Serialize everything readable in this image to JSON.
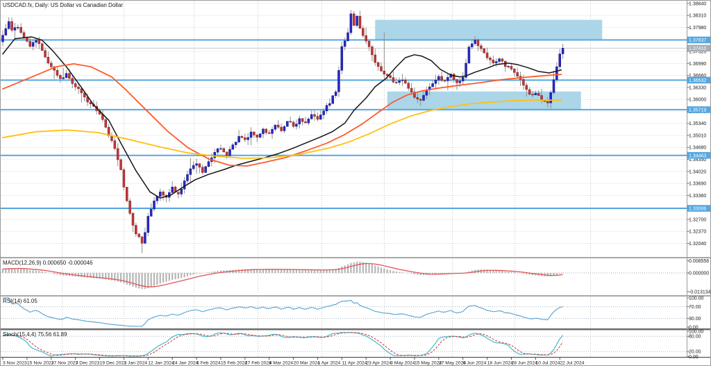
{
  "window": {
    "title": "USDCAD.fx, Daily:  US Dollar vs Canadian Dollar"
  },
  "colors": {
    "background": "#FFFFFF",
    "bull_candle": "#2828C8",
    "bull_border": "#15157F",
    "bear_candle": "#C23838",
    "bear_border": "#7E1F1F",
    "wick": "#8F8F8F",
    "sr_line": "#56A7E0",
    "sr_label_bg": "#56A7E0",
    "bid_line": "#C9C9C9",
    "bid_label_bg": "#A6AEB6",
    "zone_rect": "#ABD6E8",
    "ma_fast": "#141414",
    "ma_mid": "#FF5A2B",
    "ma_slow": "#FFC011",
    "macd_hist": "#B5B5B5",
    "macd_signal": "#E05555",
    "rsi_line": "#5FA8D8",
    "stoch_main": "#46B8CC",
    "stoch_signal": "#CC4444",
    "grid_h": "#EFEFEF",
    "grid_v": "#C4C4C4",
    "level_dotted": "#A8B6C4",
    "axis_text": "#1C1C1C",
    "separator": "#8C8C8C"
  },
  "price_axis": {
    "tick_top": 1.3864,
    "tick_step": 0.0033,
    "tick_count": 21,
    "highlighted_levels": [
      1.37637,
      1.36532,
      1.35719,
      1.34463,
      1.33006
    ],
    "bid_price": 1.3741,
    "bid_label": "1.37410"
  },
  "time_axis": {
    "labels": [
      {
        "text": "3 Nov 2023",
        "bar": 0
      },
      {
        "text": "15 Nov 2023",
        "bar": 8
      },
      {
        "text": "27 Nov 2023",
        "bar": 16
      },
      {
        "text": "7 Dec 2023",
        "bar": 24
      },
      {
        "text": "19 Dec 2023",
        "bar": 32
      },
      {
        "text": "2 Jan 2024",
        "bar": 40
      },
      {
        "text": "12 Jan 2024",
        "bar": 48
      },
      {
        "text": "24 Jan 2024",
        "bar": 56
      },
      {
        "text": "5 Feb 2024",
        "bar": 64
      },
      {
        "text": "15 Feb 2024",
        "bar": 72
      },
      {
        "text": "27 Feb 2024",
        "bar": 80
      },
      {
        "text": "8 Mar 2024",
        "bar": 88
      },
      {
        "text": "20 Mar 2024",
        "bar": 96
      },
      {
        "text": "1 Apr 2024",
        "bar": 104
      },
      {
        "text": "11 Apr 2024",
        "bar": 112
      },
      {
        "text": "23 Apr 2024",
        "bar": 120
      },
      {
        "text": "3 May 2024",
        "bar": 128
      },
      {
        "text": "15 May 2024",
        "bar": 136
      },
      {
        "text": "27 May 2024",
        "bar": 144
      },
      {
        "text": "6 Jun 2024",
        "bar": 152
      },
      {
        "text": "18 Jun 2024",
        "bar": 160
      },
      {
        "text": "28 Jun 2024",
        "bar": 168
      },
      {
        "text": "10 Jul 2024",
        "bar": 176
      },
      {
        "text": "22 Jul 2024",
        "bar": 184
      }
    ],
    "month_grid_bars": [
      88,
      177,
      278,
      370,
      462,
      552,
      650,
      740,
      849
    ]
  },
  "chart_data": {
    "type": "candlestick",
    "symbol": "USDCAD",
    "timeframe": "Daily",
    "title": "US Dollar vs Canadian Dollar",
    "bars_total": 186,
    "last_close": 1.3741,
    "close_anchors": [
      [
        0,
        1.3775
      ],
      [
        2,
        1.3815
      ],
      [
        3,
        1.379
      ],
      [
        5,
        1.38
      ],
      [
        7,
        1.377
      ],
      [
        9,
        1.3745
      ],
      [
        11,
        1.3762
      ],
      [
        13,
        1.3735
      ],
      [
        15,
        1.37
      ],
      [
        17,
        1.368
      ],
      [
        19,
        1.3658
      ],
      [
        21,
        1.3672
      ],
      [
        23,
        1.3645
      ],
      [
        25,
        1.363
      ],
      [
        27,
        1.3608
      ],
      [
        29,
        1.3588
      ],
      [
        31,
        1.3568
      ],
      [
        33,
        1.3545
      ],
      [
        35,
        1.35
      ],
      [
        37,
        1.3465
      ],
      [
        39,
        1.3405
      ],
      [
        40,
        1.336
      ],
      [
        41,
        1.332
      ],
      [
        42,
        1.3285
      ],
      [
        43,
        1.3255
      ],
      [
        44,
        1.323
      ],
      [
        45,
        1.3222
      ],
      [
        46,
        1.3205
      ],
      [
        47,
        1.3235
      ],
      [
        48,
        1.328
      ],
      [
        50,
        1.332
      ],
      [
        52,
        1.3345
      ],
      [
        54,
        1.333
      ],
      [
        56,
        1.336
      ],
      [
        58,
        1.334
      ],
      [
        60,
        1.3375
      ],
      [
        62,
        1.341
      ],
      [
        64,
        1.3425
      ],
      [
        66,
        1.34
      ],
      [
        68,
        1.343
      ],
      [
        70,
        1.3455
      ],
      [
        72,
        1.3465
      ],
      [
        74,
        1.3445
      ],
      [
        76,
        1.3475
      ],
      [
        78,
        1.35
      ],
      [
        80,
        1.3488
      ],
      [
        82,
        1.3512
      ],
      [
        84,
        1.3495
      ],
      [
        86,
        1.352
      ],
      [
        88,
        1.3505
      ],
      [
        90,
        1.353
      ],
      [
        92,
        1.3515
      ],
      [
        94,
        1.354
      ],
      [
        96,
        1.3525
      ],
      [
        98,
        1.3548
      ],
      [
        100,
        1.3535
      ],
      [
        102,
        1.3558
      ],
      [
        104,
        1.3545
      ],
      [
        106,
        1.357
      ],
      [
        108,
        1.359
      ],
      [
        110,
        1.362
      ],
      [
        111,
        1.368
      ],
      [
        112,
        1.3745
      ],
      [
        113,
        1.376
      ],
      [
        114,
        1.3785
      ],
      [
        115,
        1.3835
      ],
      [
        116,
        1.3805
      ],
      [
        117,
        1.383
      ],
      [
        118,
        1.3795
      ],
      [
        120,
        1.376
      ],
      [
        122,
        1.3722
      ],
      [
        124,
        1.369
      ],
      [
        126,
        1.3668
      ],
      [
        128,
        1.366
      ],
      [
        130,
        1.3645
      ],
      [
        132,
        1.3655
      ],
      [
        134,
        1.363
      ],
      [
        136,
        1.3605
      ],
      [
        138,
        1.3598
      ],
      [
        140,
        1.3625
      ],
      [
        142,
        1.3645
      ],
      [
        144,
        1.3662
      ],
      [
        146,
        1.365
      ],
      [
        148,
        1.3668
      ],
      [
        150,
        1.3645
      ],
      [
        152,
        1.366
      ],
      [
        153,
        1.37
      ],
      [
        154,
        1.3745
      ],
      [
        156,
        1.3762
      ],
      [
        158,
        1.374
      ],
      [
        160,
        1.3715
      ],
      [
        162,
        1.37
      ],
      [
        164,
        1.3712
      ],
      [
        166,
        1.369
      ],
      [
        168,
        1.3685
      ],
      [
        170,
        1.3665
      ],
      [
        172,
        1.364
      ],
      [
        174,
        1.3615
      ],
      [
        176,
        1.3618
      ],
      [
        178,
        1.36
      ],
      [
        180,
        1.3592
      ],
      [
        181,
        1.362
      ],
      [
        182,
        1.3655
      ],
      [
        183,
        1.369
      ],
      [
        184,
        1.3725
      ],
      [
        185,
        1.3741
      ]
    ],
    "special_wicks": [
      {
        "bar": 2,
        "high": 1.3824
      },
      {
        "bar": 46,
        "low": 1.3177
      },
      {
        "bar": 115,
        "high": 1.3846
      },
      {
        "bar": 126,
        "high": 1.3785
      },
      {
        "bar": 180,
        "low": 1.3588
      }
    ],
    "moving_averages": [
      {
        "name": "ma-fast-black",
        "color_key": "ma_fast",
        "width": 1.5,
        "points": [
          [
            0,
            1.3725
          ],
          [
            4,
            1.3767
          ],
          [
            9.6,
            1.3772
          ],
          [
            13,
            1.3763
          ],
          [
            16.5,
            1.3734
          ],
          [
            21,
            1.369
          ],
          [
            26,
            1.3633
          ],
          [
            30,
            1.3585
          ],
          [
            35,
            1.3543
          ],
          [
            39,
            1.348
          ],
          [
            44,
            1.3404
          ],
          [
            48.6,
            1.3346
          ],
          [
            52,
            1.3329
          ],
          [
            55.5,
            1.3337
          ],
          [
            59,
            1.3356
          ],
          [
            63.5,
            1.3379
          ],
          [
            68,
            1.3394
          ],
          [
            73,
            1.3407
          ],
          [
            77,
            1.3419
          ],
          [
            82,
            1.343
          ],
          [
            86.5,
            1.344
          ],
          [
            91,
            1.3451
          ],
          [
            95.6,
            1.3465
          ],
          [
            100,
            1.348
          ],
          [
            105,
            1.3497
          ],
          [
            109,
            1.3512
          ],
          [
            113,
            1.3535
          ],
          [
            116,
            1.357
          ],
          [
            120,
            1.3604
          ],
          [
            123,
            1.3635
          ],
          [
            126.6,
            1.3658
          ],
          [
            130,
            1.369
          ],
          [
            133,
            1.3715
          ],
          [
            136,
            1.3723
          ],
          [
            138.5,
            1.3719
          ],
          [
            141.5,
            1.3707
          ],
          [
            144.5,
            1.3683
          ],
          [
            148,
            1.3667
          ],
          [
            151,
            1.3662
          ],
          [
            153,
            1.3665
          ],
          [
            156,
            1.3675
          ],
          [
            160,
            1.3686
          ],
          [
            163,
            1.3696
          ],
          [
            167,
            1.37
          ],
          [
            170,
            1.3696
          ],
          [
            174,
            1.3686
          ],
          [
            177,
            1.3677
          ],
          [
            180.5,
            1.3673
          ],
          [
            184.5,
            1.3681
          ]
        ]
      },
      {
        "name": "ma-mid-orange",
        "color_key": "ma_mid",
        "width": 1.8,
        "points": [
          [
            0,
            1.3629
          ],
          [
            8.5,
            1.3658
          ],
          [
            17.7,
            1.369
          ],
          [
            23.4,
            1.3698
          ],
          [
            29.1,
            1.369
          ],
          [
            36,
            1.3662
          ],
          [
            40.6,
            1.3627
          ],
          [
            47.5,
            1.357
          ],
          [
            54.4,
            1.3513
          ],
          [
            61.2,
            1.3467
          ],
          [
            68.1,
            1.3436
          ],
          [
            75,
            1.3419
          ],
          [
            80.7,
            1.3417
          ],
          [
            86.5,
            1.3427
          ],
          [
            93.3,
            1.344
          ],
          [
            100.2,
            1.3459
          ],
          [
            107.1,
            1.348
          ],
          [
            112.8,
            1.3503
          ],
          [
            118.6,
            1.3532
          ],
          [
            124.3,
            1.3566
          ],
          [
            128.9,
            1.3593
          ],
          [
            133.5,
            1.3612
          ],
          [
            138.1,
            1.3623
          ],
          [
            143.8,
            1.3631
          ],
          [
            150.7,
            1.3639
          ],
          [
            157.6,
            1.3646
          ],
          [
            164.4,
            1.3654
          ],
          [
            171.3,
            1.366
          ],
          [
            178.2,
            1.3665
          ],
          [
            184.5,
            1.3669
          ]
        ]
      },
      {
        "name": "ma-slow-yellow",
        "color_key": "ma_slow",
        "width": 1.8,
        "points": [
          [
            0,
            1.3495
          ],
          [
            10.8,
            1.3511
          ],
          [
            21.1,
            1.3516
          ],
          [
            31.4,
            1.3509
          ],
          [
            41.7,
            1.349
          ],
          [
            52.1,
            1.3469
          ],
          [
            61.2,
            1.3453
          ],
          [
            70.4,
            1.3444
          ],
          [
            79.6,
            1.3438
          ],
          [
            88.8,
            1.344
          ],
          [
            98,
            1.3449
          ],
          [
            107.1,
            1.3465
          ],
          [
            114,
            1.3482
          ],
          [
            120.9,
            1.3505
          ],
          [
            127.8,
            1.3532
          ],
          [
            134.6,
            1.3554
          ],
          [
            141.5,
            1.357
          ],
          [
            148.4,
            1.3581
          ],
          [
            155.3,
            1.3589
          ],
          [
            162.2,
            1.3593
          ],
          [
            169,
            1.3597
          ],
          [
            175.9,
            1.3598
          ],
          [
            184.5,
            1.3598
          ]
        ]
      }
    ],
    "horizontal_lines": [
      1.37637,
      1.36532,
      1.35719,
      1.34463,
      1.33006
    ],
    "rectangles": [
      {
        "from_bar": 123,
        "to_bar": 198,
        "top": 1.3819,
        "bottom": 1.3765
      },
      {
        "from_bar": 127,
        "to_bar": 191,
        "top": 1.3622,
        "bottom": 1.357
      }
    ],
    "indicators": {
      "macd": {
        "label": "MACD(12,26,9) 0.000650 -0.000046",
        "params": [
          12,
          26,
          9
        ],
        "value_main": "0.000650",
        "value_signal": "-0.000046",
        "axis_labels": [
          "0.008556",
          "0.000000",
          "-0.013134"
        ],
        "axis_values": [
          0.008556,
          0.0,
          -0.013134
        ]
      },
      "rsi": {
        "label": "RSI(14) 61.05",
        "period": 14,
        "value": "61.05",
        "levels": [
          70,
          30
        ],
        "axis_labels": [
          "100.00",
          "70.00",
          "30.00",
          "0.00"
        ],
        "axis_values": [
          100,
          70,
          30,
          0
        ]
      },
      "stoch": {
        "label": "Stoch(15,4,4) 75.56 61.89",
        "params": [
          15,
          4,
          4
        ],
        "value_main": "75.56",
        "value_signal": "61.89",
        "levels": [
          80,
          20
        ],
        "axis_labels": [
          "100.00",
          "80.00",
          "20.00",
          "0.00"
        ],
        "axis_values": [
          100,
          80,
          20,
          0
        ]
      }
    }
  }
}
